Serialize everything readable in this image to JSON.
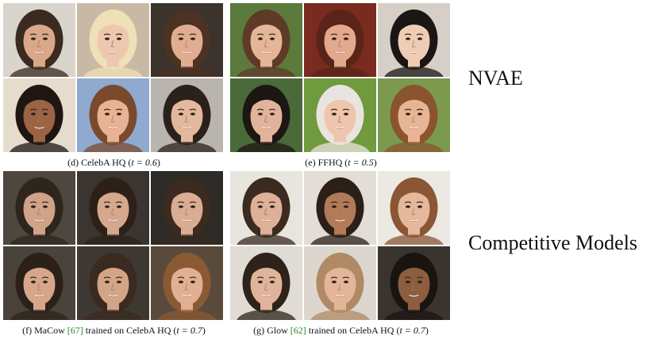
{
  "side_labels": {
    "top": "NVAE",
    "bottom": "Competitive Models"
  },
  "panels": [
    {
      "id": "d",
      "caption_prefix": "(d) CelebA HQ (",
      "caption_math": "t = 0.6",
      "caption_suffix": ")",
      "faces": [
        {
          "bg": "#d9d4cc",
          "skin": "#d9a889",
          "hair": "#3a2a1f",
          "face_desc": "smiling man, dark hair, stubble"
        },
        {
          "bg": "#c9b9a4",
          "skin": "#edc7ae",
          "hair": "#efe0b8",
          "face_desc": "blonde woman"
        },
        {
          "bg": "#3b332c",
          "skin": "#e0ad90",
          "hair": "#4b3222",
          "face_desc": "woman with brown wavy hair"
        },
        {
          "bg": "#e6dccd",
          "skin": "#9b6444",
          "hair": "#1f1611",
          "face_desc": "smiling man, short dark hair"
        },
        {
          "bg": "#8fa9cf",
          "skin": "#e7b394",
          "hair": "#7a4a2c",
          "face_desc": "smiling woman, light brown hair"
        },
        {
          "bg": "#b9b4ad",
          "skin": "#e3b89d",
          "hair": "#2b211b",
          "face_desc": "smiling man, dark hair"
        }
      ]
    },
    {
      "id": "e",
      "caption_prefix": "(e) FFHQ (",
      "caption_math": "t = 0.5",
      "caption_suffix": ")",
      "faces": [
        {
          "bg": "#5b7a3c",
          "skin": "#e4b597",
          "hair": "#5e3a27",
          "face_desc": "older woman, short brown hair"
        },
        {
          "bg": "#7a2a1e",
          "skin": "#e2a98d",
          "hair": "#5a2418",
          "face_desc": "smiling woman, auburn hair"
        },
        {
          "bg": "#d6cfc7",
          "skin": "#efcdb4",
          "hair": "#1b1613",
          "face_desc": "young woman, black hair"
        },
        {
          "bg": "#4b6a3a",
          "skin": "#e1b39a",
          "hair": "#1c1713",
          "face_desc": "smiling man with glasses"
        },
        {
          "bg": "#6f9a3e",
          "skin": "#efc5ad",
          "hair": "#e9e4df",
          "face_desc": "older man with glasses, white hair"
        },
        {
          "bg": "#7b9a4e",
          "skin": "#e7b593",
          "hair": "#8a5430",
          "face_desc": "smiling woman, reddish hair"
        }
      ]
    },
    {
      "id": "f",
      "caption_prefix": "(f) MaCow ",
      "caption_ref": "[67]",
      "caption_mid": " trained on CelebA HQ (",
      "caption_math": "t = 0.7",
      "caption_suffix": ")",
      "faces": [
        {
          "bg": "#4e473f",
          "skin": "#cfa387",
          "hair": "#2e251d",
          "face_desc": "man, dark hair"
        },
        {
          "bg": "#3a3530",
          "skin": "#d5a88d",
          "hair": "#2d2019",
          "face_desc": "woman, dark hair"
        },
        {
          "bg": "#2e2a26",
          "skin": "#d9ad93",
          "hair": "#3a2a1f",
          "face_desc": "woman, dark hair"
        },
        {
          "bg": "#4a433c",
          "skin": "#d7a68a",
          "hair": "#2c2119",
          "face_desc": "smiling woman, dark hair"
        },
        {
          "bg": "#3e3832",
          "skin": "#d4a487",
          "hair": "#3a2a1f",
          "face_desc": "woman, brown hair"
        },
        {
          "bg": "#5a4a3c",
          "skin": "#e1b093",
          "hair": "#8a5a33",
          "face_desc": "woman, light brown hair"
        }
      ]
    },
    {
      "id": "g",
      "caption_prefix": "(g) Glow ",
      "caption_ref": "[62]",
      "caption_mid": " trained on CelebA HQ (",
      "caption_math": "t = 0.7",
      "caption_suffix": ")",
      "faces": [
        {
          "bg": "#e8e4de",
          "skin": "#ddb098",
          "hair": "#3a2a1f",
          "face_desc": "woman, dark hair"
        },
        {
          "bg": "#e2ddd6",
          "skin": "#b27a58",
          "hair": "#2b1f17",
          "face_desc": "man, short dark hair"
        },
        {
          "bg": "#ece8e2",
          "skin": "#e6b89b",
          "hair": "#8a5634",
          "face_desc": "woman, long brown hair"
        },
        {
          "bg": "#e0dbd4",
          "skin": "#e0b49b",
          "hair": "#2e231b",
          "face_desc": "smiling woman, dark hair"
        },
        {
          "bg": "#dcd6cf",
          "skin": "#e4b699",
          "hair": "#b08a64",
          "face_desc": "woman, light hair"
        },
        {
          "bg": "#3a342f",
          "skin": "#8d5d40",
          "hair": "#1a1411",
          "face_desc": "smiling man, dark hair"
        }
      ]
    }
  ]
}
